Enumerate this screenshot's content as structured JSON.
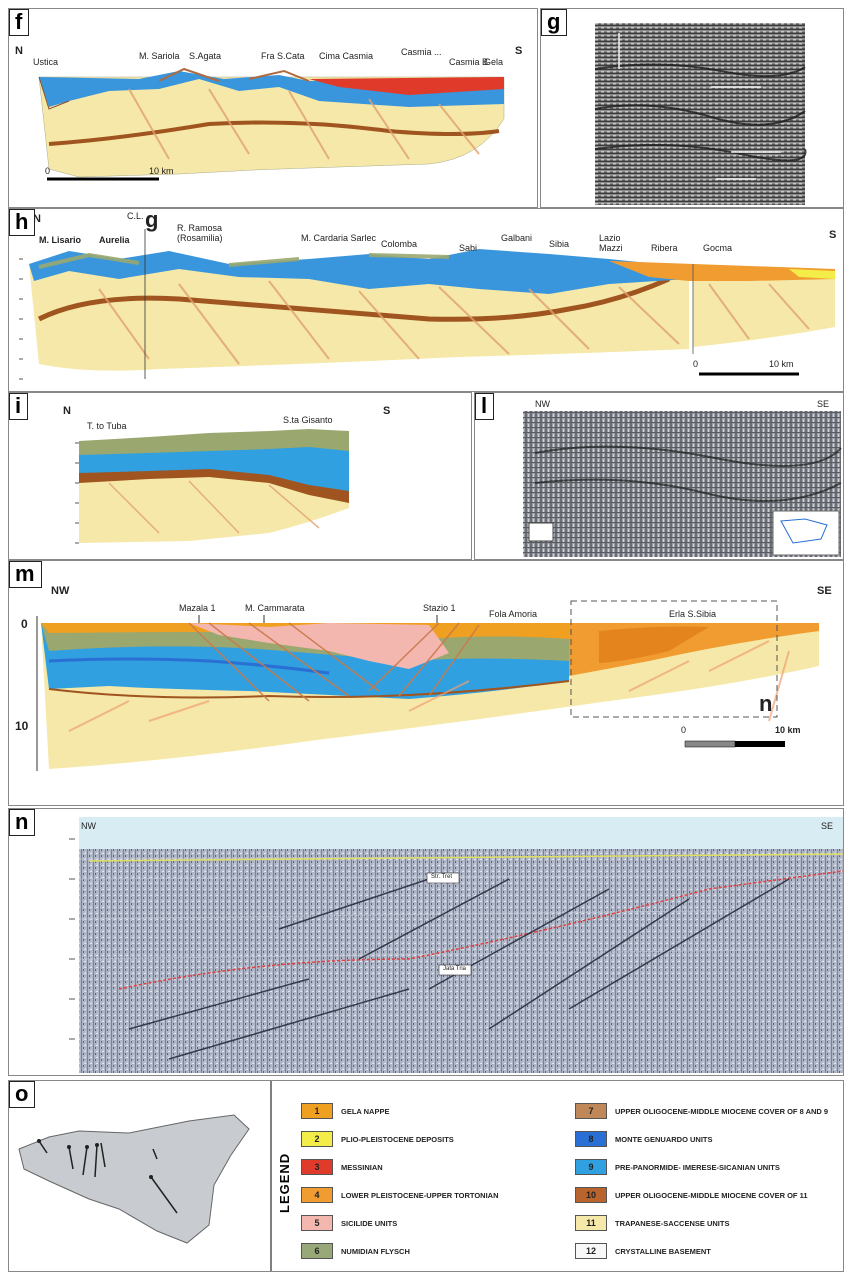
{
  "panels": {
    "f": {
      "letter": "f",
      "dir_left": "N",
      "dir_right": "S",
      "labels": [
        "Ustica",
        "M. Sariola",
        "S.Agata",
        "Fra S.Cata",
        "Cima Casmia",
        "Casmia ...",
        "Casmia B",
        "Gela"
      ],
      "scale": "10 km",
      "scale_zero": "0"
    },
    "g": {
      "letter": "g"
    },
    "h": {
      "letter": "h",
      "dir_left": "N",
      "dir_right": "S",
      "section_ref": "g",
      "cl_label": "C.L.",
      "labels": [
        "M. Lisario",
        "Aurelia",
        "R. Ramosa",
        "(Rosamilia)",
        "M. Cardaria Sarlec",
        "Colomba",
        "Sabi",
        "Galbani",
        "Sibia",
        "Lazio",
        "Mazzi",
        "Ribera",
        "Gocma"
      ],
      "scale": "10 km",
      "scale_zero": "0"
    },
    "i": {
      "letter": "i",
      "dir_left": "N",
      "dir_right": "S",
      "labels": [
        "T. to Tuba",
        "S.ta Gisanto"
      ]
    },
    "l": {
      "letter": "l",
      "dir_left": "NW",
      "dir_right": "SE"
    },
    "m": {
      "letter": "m",
      "dir_left": "NW",
      "dir_right": "SE",
      "depth_0": "0",
      "depth_10": "10",
      "labels": [
        "Mazala 1",
        "M. Cammarata",
        "Stazio 1",
        "Fola Amoria",
        "Erla S.Sibia"
      ],
      "n_ref": "n",
      "scale": "10 km",
      "scale_zero": "0"
    },
    "n": {
      "letter": "n",
      "dir_left": "NW",
      "dir_right": "SE",
      "horizon_a": "Str. Tret",
      "horizon_b": "Jata Tria"
    },
    "o": {
      "letter": "o"
    }
  },
  "legend": {
    "title": "LEGEND",
    "items": [
      {
        "num": "1",
        "label": "GELA NAPPE",
        "color": "#f0a020"
      },
      {
        "num": "2",
        "label": "PLIO-PLEISTOCENE DEPOSITS",
        "color": "#f4ec48"
      },
      {
        "num": "3",
        "label": "MESSINIAN",
        "color": "#e03a2a"
      },
      {
        "num": "4",
        "label": "LOWER PLEISTOCENE-UPPER TORTONIAN",
        "color": "#f09c30"
      },
      {
        "num": "5",
        "label": "SICILIDE UNITS",
        "color": "#f4b7b0"
      },
      {
        "num": "6",
        "label": "NUMIDIAN FLYSCH",
        "color": "#98a878"
      },
      {
        "num": "7",
        "label": "UPPER OLIGOCENE-MIDDLE MIOCENE COVER OF 8 AND 9",
        "color": "#c08858"
      },
      {
        "num": "8",
        "label": "MONTE GENUARDO UNITS",
        "color": "#2a6fd4"
      },
      {
        "num": "9",
        "label": "PRE-PANORMIDE- IMERESE-SICANIAN UNITS",
        "color": "#30a0e0"
      },
      {
        "num": "10",
        "label": "UPPER OLIGOCENE-MIDDLE MIOCENE COVER OF 11",
        "color": "#b8642c"
      },
      {
        "num": "11",
        "label": "TRAPANESE-SACCENSE UNITS",
        "color": "#f5e8a8"
      },
      {
        "num": "12",
        "label": "CRYSTALLINE BASEMENT",
        "color": "#f8f8f8"
      }
    ]
  }
}
